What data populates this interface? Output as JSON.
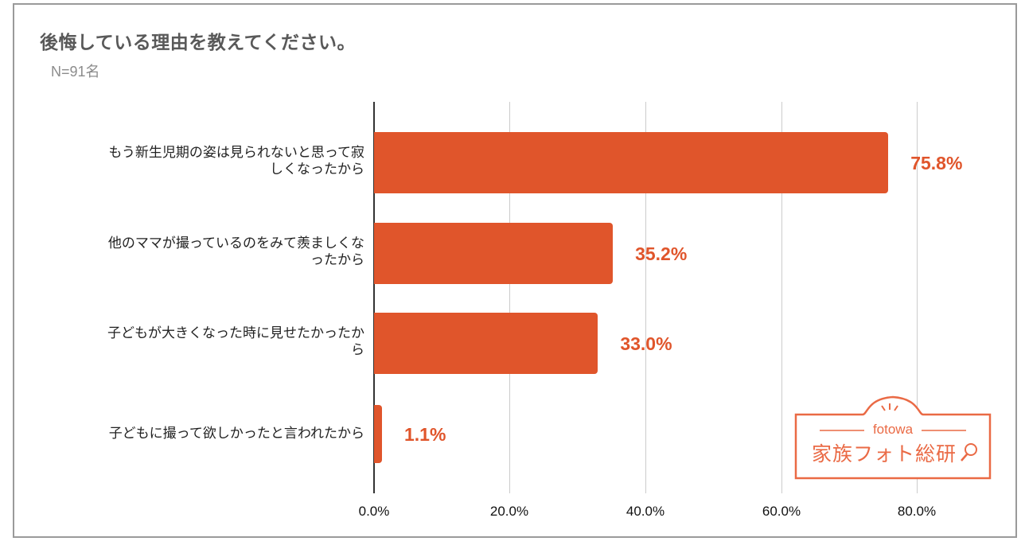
{
  "header": {
    "title": "後悔している理由を教えてください。",
    "subtitle": "N=91名"
  },
  "colors": {
    "bar": "#e0552b",
    "grid": "#cccccc",
    "logo": "#ea6a45"
  },
  "logo": {
    "brand": "fotowa",
    "name": "家族フォト総研"
  },
  "chart_data": {
    "type": "bar",
    "orientation": "horizontal",
    "title": "後悔している理由を教えてください。",
    "subtitle": "N=91名",
    "categories": [
      "もう新生児期の姿は見られないと思って寂しくなったから",
      "他のママが撮っているのをみて羨ましくなったから",
      "子どもが大きくなった時に見せたかったから",
      "子どもに撮って欲しかったと言われたから"
    ],
    "category_lines": [
      [
        "もう新生児期の姿は見られないと思って寂",
        "しくなったから"
      ],
      [
        "他のママが撮っているのをみて羨ましくな",
        "ったから"
      ],
      [
        "子どもが大きくなった時に見せたかったか",
        "ら"
      ],
      [
        "子どもに撮って欲しかったと言われたから"
      ]
    ],
    "values": [
      75.8,
      35.2,
      33.0,
      1.1
    ],
    "value_labels": [
      "75.8%",
      "35.2%",
      "33.0%",
      "1.1%"
    ],
    "xlabel": "",
    "ylabel": "",
    "xlim": [
      0,
      90
    ],
    "xticks": [
      "0.0%",
      "20.0%",
      "40.0%",
      "60.0%",
      "80.0%"
    ],
    "grid": true,
    "legend": null
  }
}
